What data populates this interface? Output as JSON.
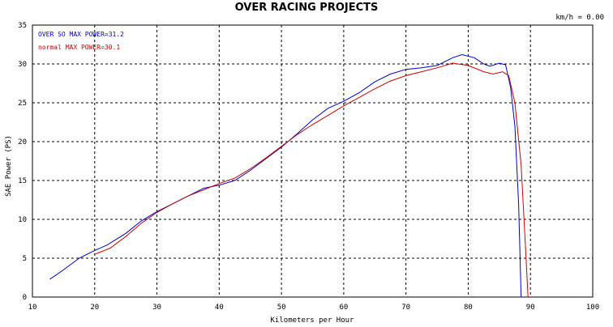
{
  "header": {
    "title": "OVER RACING PROJECTS",
    "speed_readout": "km/h = 0.00"
  },
  "chart_data": {
    "type": "line",
    "xlabel": "Kilometers per Hour",
    "ylabel": "SAE Power (PS)",
    "xlim": [
      10,
      100
    ],
    "ylim": [
      0,
      35
    ],
    "x_ticks": [
      10,
      20,
      30,
      40,
      50,
      60,
      70,
      80,
      90,
      100
    ],
    "y_ticks": [
      0,
      5,
      10,
      15,
      20,
      25,
      30,
      35
    ],
    "grid": true,
    "legend_position": "top-left",
    "series": [
      {
        "name": "OVER SO  MAX POWER=31.2",
        "color": "#0000cc",
        "points": [
          [
            12.8,
            2.3
          ],
          [
            15,
            3.5
          ],
          [
            17.5,
            5.0
          ],
          [
            20,
            6.0
          ],
          [
            22,
            6.7
          ],
          [
            25,
            8.2
          ],
          [
            27.5,
            9.8
          ],
          [
            30,
            11.0
          ],
          [
            32.5,
            12.0
          ],
          [
            35,
            13.0
          ],
          [
            37.5,
            14.0
          ],
          [
            40,
            14.4
          ],
          [
            42.5,
            15.0
          ],
          [
            45,
            16.3
          ],
          [
            47.5,
            17.8
          ],
          [
            50,
            19.3
          ],
          [
            52.5,
            21.0
          ],
          [
            55,
            22.8
          ],
          [
            57.5,
            24.3
          ],
          [
            60,
            25.2
          ],
          [
            62.5,
            26.3
          ],
          [
            65,
            27.7
          ],
          [
            67.5,
            28.7
          ],
          [
            70,
            29.3
          ],
          [
            72.5,
            29.5
          ],
          [
            75,
            29.8
          ],
          [
            77.5,
            30.8
          ],
          [
            79,
            31.2
          ],
          [
            81,
            30.8
          ],
          [
            82.5,
            30.0
          ],
          [
            83.5,
            29.7
          ],
          [
            85,
            30.1
          ],
          [
            86,
            29.9
          ],
          [
            86.8,
            27.0
          ],
          [
            87.5,
            22.0
          ],
          [
            88.1,
            12.0
          ],
          [
            88.5,
            0.0
          ]
        ]
      },
      {
        "name": "normal  MAX POWER=30.1",
        "color": "#cc0000",
        "points": [
          [
            20,
            5.5
          ],
          [
            22.5,
            6.3
          ],
          [
            25,
            7.8
          ],
          [
            27.5,
            9.5
          ],
          [
            30,
            10.9
          ],
          [
            32.5,
            12.0
          ],
          [
            35,
            13.0
          ],
          [
            37.5,
            13.8
          ],
          [
            40,
            14.6
          ],
          [
            42.5,
            15.3
          ],
          [
            45,
            16.5
          ],
          [
            47.5,
            17.9
          ],
          [
            50,
            19.4
          ],
          [
            52.5,
            20.9
          ],
          [
            55,
            22.2
          ],
          [
            57.5,
            23.4
          ],
          [
            60,
            24.6
          ],
          [
            62.5,
            25.7
          ],
          [
            65,
            26.8
          ],
          [
            67.5,
            27.8
          ],
          [
            70,
            28.5
          ],
          [
            72.5,
            29.0
          ],
          [
            75,
            29.5
          ],
          [
            77.5,
            30.1
          ],
          [
            80,
            29.8
          ],
          [
            82.5,
            29.0
          ],
          [
            84,
            28.7
          ],
          [
            85.5,
            29.0
          ],
          [
            86.5,
            28.5
          ],
          [
            87.5,
            25.0
          ],
          [
            88.5,
            17.0
          ],
          [
            89.3,
            5.0
          ],
          [
            89.6,
            0.0
          ]
        ]
      }
    ]
  }
}
